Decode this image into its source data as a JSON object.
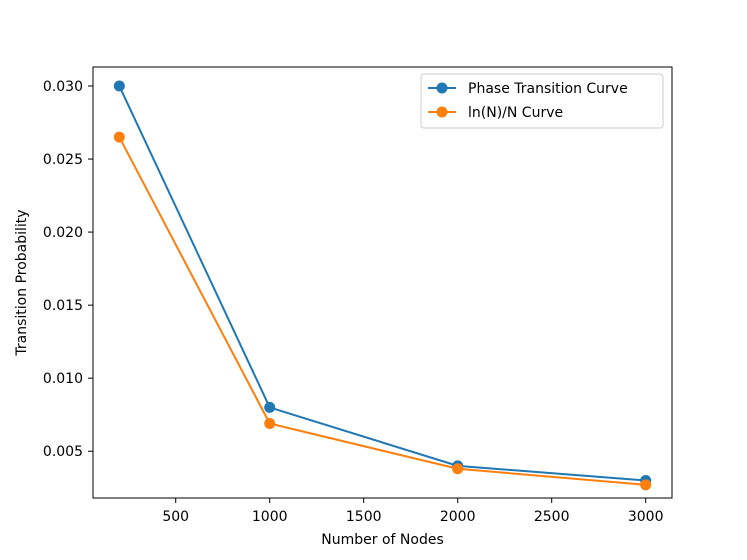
{
  "chart_data": {
    "type": "line",
    "title": "",
    "xlabel": "Number of Nodes",
    "ylabel": "Transition Probability",
    "xlim": [
      60,
      3140
    ],
    "ylim": [
      0.0018,
      0.0313
    ],
    "x_ticks": [
      500,
      1000,
      1500,
      2000,
      2500,
      3000
    ],
    "x_tick_labels": [
      "500",
      "1000",
      "1500",
      "2000",
      "2500",
      "3000"
    ],
    "y_ticks": [
      0.005,
      0.01,
      0.015,
      0.02,
      0.025,
      0.03
    ],
    "y_tick_labels": [
      "0.005",
      "0.010",
      "0.015",
      "0.020",
      "0.025",
      "0.030"
    ],
    "grid": false,
    "legend_position": "top-right",
    "x": [
      200,
      1000,
      2000,
      3000
    ],
    "series": [
      {
        "name": "Phase Transition Curve",
        "color": "#1f77b4",
        "values": [
          0.03,
          0.008,
          0.004,
          0.003
        ]
      },
      {
        "name": "ln(N)/N Curve",
        "color": "#ff7f0e",
        "values": [
          0.0265,
          0.0069,
          0.0038,
          0.0027
        ]
      }
    ]
  }
}
